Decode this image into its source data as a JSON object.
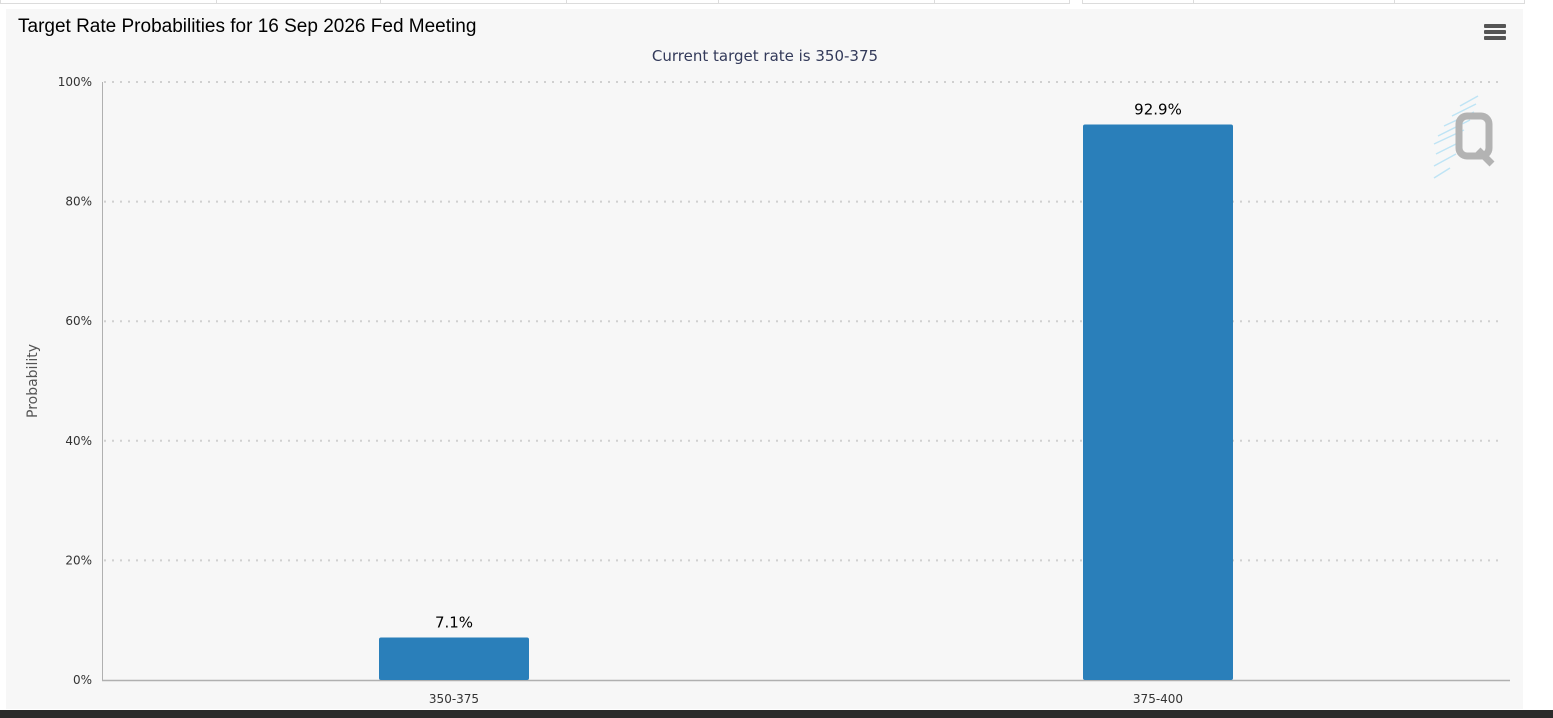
{
  "chart": {
    "title": "Target Rate Probabilities for 16 Sep 2026 Fed Meeting",
    "subtitle": "Current target rate is 350-375",
    "menu_icon": "hamburger-menu-icon",
    "watermark_icon": "quikstrike-q-logo-icon"
  },
  "chart_data": {
    "type": "bar",
    "title": "Target Rate Probabilities for 16 Sep 2026 Fed Meeting",
    "subtitle": "Current target rate is 350-375",
    "xlabel": "",
    "ylabel": "Probability",
    "categories": [
      "350-375",
      "375-400"
    ],
    "values": [
      7.1,
      92.9
    ],
    "data_labels": [
      "7.1%",
      "92.9%"
    ],
    "yticks": [
      0,
      20,
      40,
      60,
      80,
      100
    ],
    "ytick_labels": [
      "0%",
      "20%",
      "40%",
      "60%",
      "80%",
      "100%"
    ],
    "ylim": [
      0,
      100
    ],
    "grid": true,
    "legend": "none",
    "bar_color": "#2a7fba"
  }
}
